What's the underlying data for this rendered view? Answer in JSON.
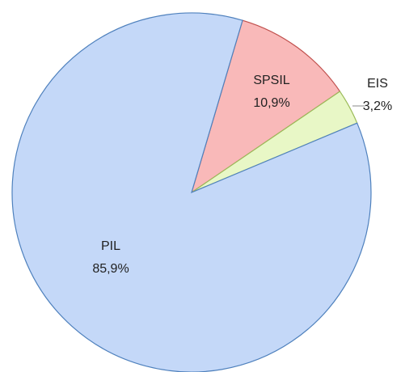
{
  "chart_data": {
    "type": "pie",
    "categories": [
      "SPSIL",
      "EIS",
      "PIL"
    ],
    "values": [
      10.9,
      3.2,
      85.9
    ],
    "value_labels": [
      "10,9%",
      "3,2%",
      "85,9%"
    ],
    "colors": [
      "#f9b9b9",
      "#e8f7c6",
      "#c4d8f8"
    ],
    "stroke_colors": [
      "#c0504d",
      "#9bbb59",
      "#4f81bd"
    ]
  }
}
